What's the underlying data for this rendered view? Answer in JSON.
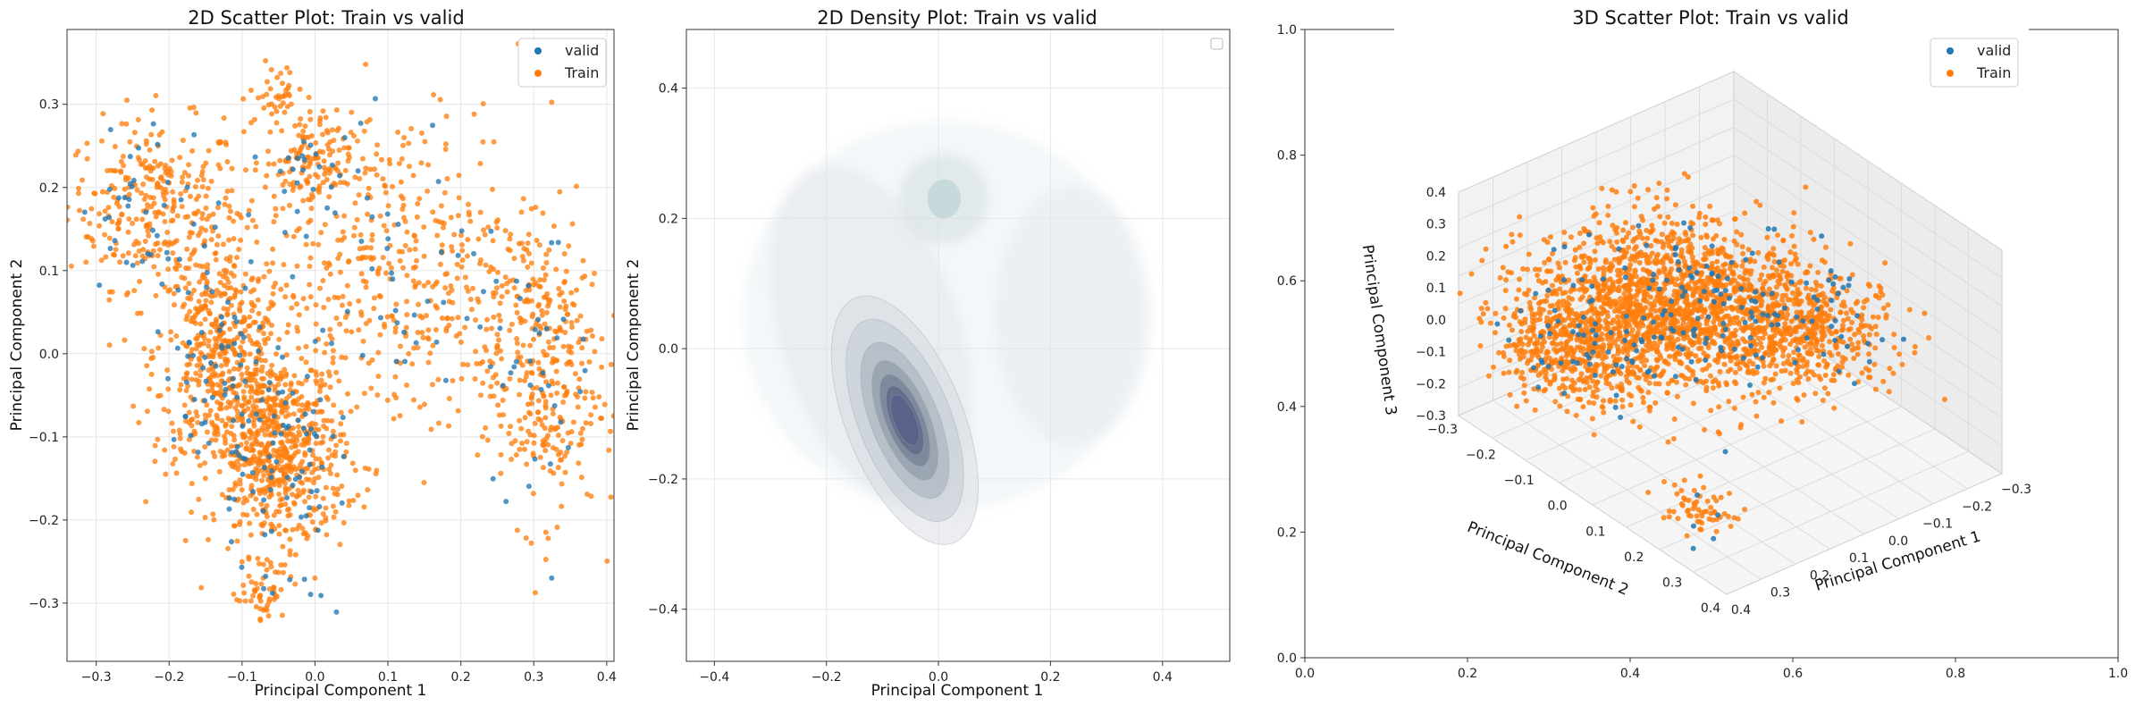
{
  "colors": {
    "valid": "#1f77b4",
    "train": "#ff7f0e"
  },
  "chart_data": [
    {
      "type": "scatter",
      "title": "2D Scatter Plot: Train vs valid",
      "xlabel": "Principal Component 1",
      "ylabel": "Principal Component 2",
      "xlim": [
        -0.34,
        0.41
      ],
      "ylim": [
        -0.37,
        0.39
      ],
      "xticks": [
        "−0.3",
        "−0.2",
        "−0.1",
        "0.0",
        "0.1",
        "0.2",
        "0.3",
        "0.4"
      ],
      "yticks": [
        "−0.3",
        "−0.2",
        "−0.1",
        "0.0",
        "0.1",
        "0.2",
        "0.3"
      ],
      "grid": true,
      "legend_position": "top-right",
      "series": [
        {
          "name": "valid",
          "color": "#1f77b4",
          "clusters": [
            {
              "cx": -0.22,
              "cy": 0.18,
              "sx": 0.05,
              "sy": 0.05,
              "n": 40
            },
            {
              "cx": -0.13,
              "cy": 0.0,
              "sx": 0.04,
              "sy": 0.06,
              "n": 60
            },
            {
              "cx": -0.06,
              "cy": -0.12,
              "sx": 0.04,
              "sy": 0.05,
              "n": 70
            },
            {
              "cx": -0.01,
              "cy": 0.22,
              "sx": 0.03,
              "sy": 0.03,
              "n": 18
            },
            {
              "cx": 0.1,
              "cy": 0.1,
              "sx": 0.08,
              "sy": 0.1,
              "n": 50
            },
            {
              "cx": 0.3,
              "cy": -0.02,
              "sx": 0.04,
              "sy": 0.08,
              "n": 35
            },
            {
              "cx": -0.04,
              "cy": -0.29,
              "sx": 0.03,
              "sy": 0.015,
              "n": 8
            }
          ]
        },
        {
          "name": "Train",
          "color": "#ff7f0e",
          "clusters": [
            {
              "cx": -0.22,
              "cy": 0.18,
              "sx": 0.06,
              "sy": 0.05,
              "n": 300
            },
            {
              "cx": -0.13,
              "cy": 0.0,
              "sx": 0.045,
              "sy": 0.07,
              "n": 500
            },
            {
              "cx": -0.05,
              "cy": -0.12,
              "sx": 0.045,
              "sy": 0.06,
              "n": 650
            },
            {
              "cx": -0.01,
              "cy": 0.23,
              "sx": 0.03,
              "sy": 0.03,
              "n": 130
            },
            {
              "cx": -0.05,
              "cy": 0.31,
              "sx": 0.02,
              "sy": 0.02,
              "n": 40
            },
            {
              "cx": 0.12,
              "cy": 0.1,
              "sx": 0.1,
              "sy": 0.1,
              "n": 450
            },
            {
              "cx": 0.31,
              "cy": -0.02,
              "sx": 0.04,
              "sy": 0.09,
              "n": 330
            },
            {
              "cx": -0.07,
              "cy": -0.29,
              "sx": 0.015,
              "sy": 0.015,
              "n": 40
            }
          ]
        }
      ]
    },
    {
      "type": "kde-contour",
      "title": "2D Density Plot: Train vs valid",
      "xlabel": "Principal Component 1",
      "ylabel": "Principal Component 2",
      "xlim": [
        -0.45,
        0.52
      ],
      "ylim": [
        -0.48,
        0.49
      ],
      "xticks": [
        "−0.4",
        "−0.2",
        "0.0",
        "0.2",
        "0.4"
      ],
      "yticks": [
        "−0.4",
        "−0.2",
        "0.0",
        "0.2",
        "0.4"
      ],
      "grid": true,
      "legend_position": "top-right",
      "density_modes": [
        {
          "cx": -0.06,
          "cy": -0.11,
          "rx": 0.05,
          "ry": 0.09,
          "weight": 1.0
        },
        {
          "cx": 0.01,
          "cy": 0.23,
          "rx": 0.035,
          "ry": 0.03,
          "weight": 0.35
        },
        {
          "cx": 0.27,
          "cy": 0.02,
          "rx": 0.05,
          "ry": 0.09,
          "weight": 0.2
        },
        {
          "cx": -0.18,
          "cy": 0.12,
          "rx": 0.05,
          "ry": 0.06,
          "weight": 0.3
        }
      ]
    },
    {
      "type": "scatter3d",
      "title": "3D Scatter Plot: Train vs valid",
      "xlabel": "Principal Component 1",
      "ylabel": "Principal Component 2",
      "zlabel": "Principal Component 3",
      "outer_xticks": [
        "0.0",
        "0.2",
        "0.4",
        "0.6",
        "0.8",
        "1.0"
      ],
      "outer_yticks": [
        "0.0",
        "0.2",
        "0.4",
        "0.6",
        "0.8",
        "1.0"
      ],
      "pc1_ticks": [
        "−0.3",
        "−0.2",
        "−0.1",
        "0.0",
        "0.1",
        "0.2",
        "0.3",
        "0.4"
      ],
      "pc2_ticks": [
        "−0.3",
        "−0.2",
        "−0.1",
        "0.0",
        "0.1",
        "0.2",
        "0.3",
        "0.4"
      ],
      "pc3_ticks": [
        "−0.3",
        "−0.2",
        "−0.1",
        "0.0",
        "0.1",
        "0.2",
        "0.3",
        "0.4"
      ],
      "legend_position": "top-right",
      "series": [
        {
          "name": "valid",
          "color": "#1f77b4"
        },
        {
          "name": "Train",
          "color": "#ff7f0e"
        }
      ]
    }
  ]
}
